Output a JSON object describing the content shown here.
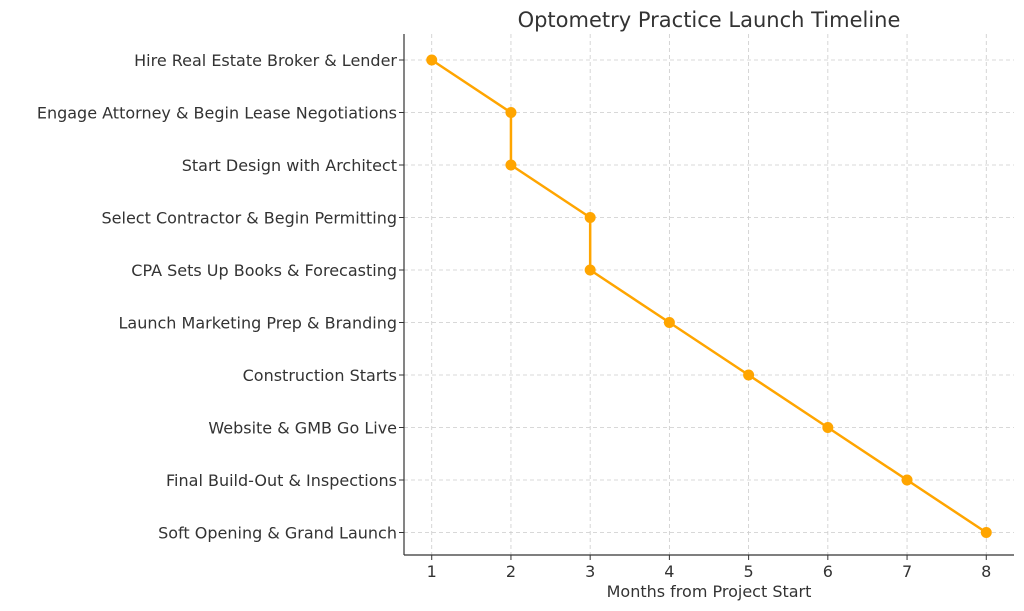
{
  "chart_data": {
    "type": "line",
    "title": "Optometry Practice Launch Timeline",
    "xlabel": "Months from Project Start",
    "ylabel": "",
    "xlim": [
      0.65,
      8.35
    ],
    "x_ticks": [
      1,
      2,
      3,
      4,
      5,
      6,
      7,
      8
    ],
    "categories": [
      "Hire Real Estate Broker & Lender",
      "Engage Attorney & Begin Lease Negotiations",
      "Start Design with Architect",
      "Select Contractor & Begin Permitting",
      "CPA Sets Up Books & Forecasting",
      "Launch Marketing Prep & Branding",
      "Construction Starts",
      "Website & GMB Go Live",
      "Final Build-Out & Inspections",
      "Soft Opening & Grand Launch"
    ],
    "values": [
      1,
      2,
      2,
      3,
      3,
      4,
      5,
      6,
      7,
      8
    ],
    "color": "#FFA500",
    "grid": true,
    "marker": "circle",
    "y_order": "first category at top"
  }
}
